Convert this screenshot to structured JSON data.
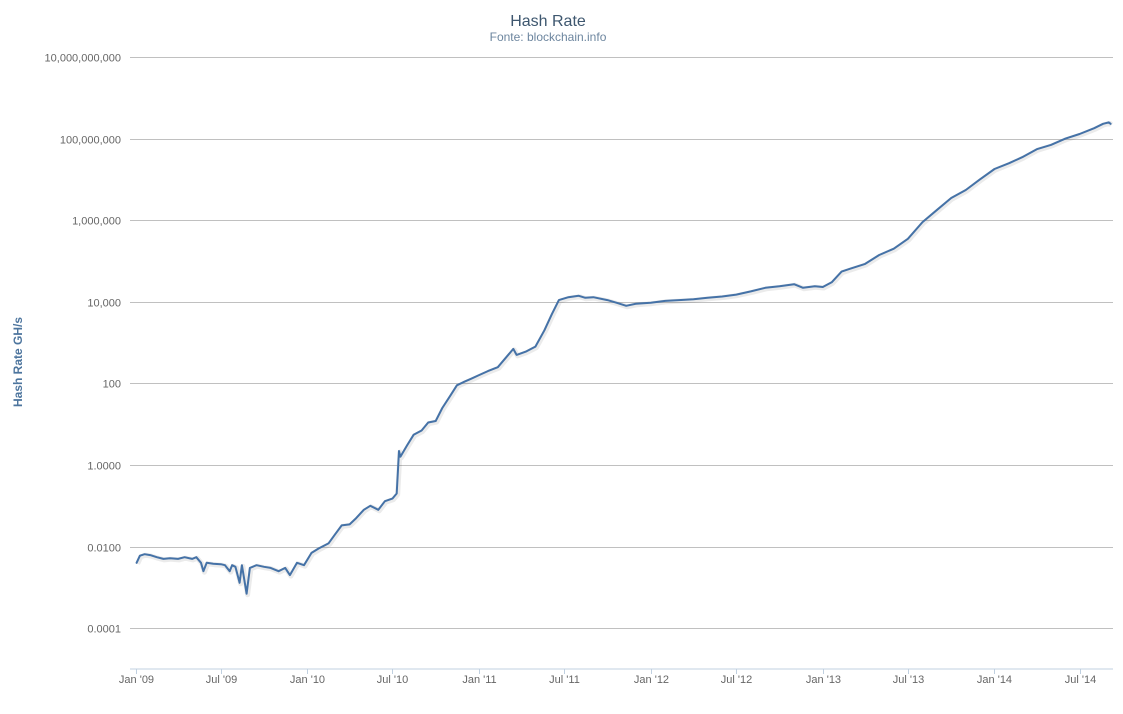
{
  "chart_data": {
    "type": "line",
    "title": "Hash Rate",
    "subtitle": "Fonte: blockchain.info",
    "xlabel": "",
    "ylabel": "Hash Rate GH/s",
    "yscale": "log",
    "ylim": [
      1e-05,
      10000000000
    ],
    "xlim": [
      "2008-12-20",
      "2014-09-10"
    ],
    "grid": true,
    "legend": "none",
    "color": "#4572a7",
    "y_ticks": [
      {
        "value": 0.0001,
        "label": "0.0001"
      },
      {
        "value": 0.01,
        "label": "0.0100"
      },
      {
        "value": 1,
        "label": "1.0000"
      },
      {
        "value": 100,
        "label": "100"
      },
      {
        "value": 10000,
        "label": "10,000"
      },
      {
        "value": 1000000,
        "label": "1,000,000"
      },
      {
        "value": 100000000,
        "label": "100,000,000"
      },
      {
        "value": 10000000000,
        "label": "10,000,000,000"
      }
    ],
    "x_ticks": [
      {
        "date": "2009-01-01",
        "label": "Jan '09"
      },
      {
        "date": "2009-07-01",
        "label": "Jul '09"
      },
      {
        "date": "2010-01-01",
        "label": "Jan '10"
      },
      {
        "date": "2010-07-01",
        "label": "Jul '10"
      },
      {
        "date": "2011-01-01",
        "label": "Jan '11"
      },
      {
        "date": "2011-07-01",
        "label": "Jul '11"
      },
      {
        "date": "2012-01-01",
        "label": "Jan '12"
      },
      {
        "date": "2012-07-01",
        "label": "Jul '12"
      },
      {
        "date": "2013-01-01",
        "label": "Jan '13"
      },
      {
        "date": "2013-07-01",
        "label": "Jul '13"
      },
      {
        "date": "2014-01-01",
        "label": "Jan '14"
      },
      {
        "date": "2014-07-01",
        "label": "Jul '14"
      }
    ],
    "series": [
      {
        "points": [
          [
            "2009-01-03",
            0.004
          ],
          [
            "2009-01-10",
            0.006
          ],
          [
            "2009-01-20",
            0.0065
          ],
          [
            "2009-02-01",
            0.0062
          ],
          [
            "2009-02-15",
            0.0055
          ],
          [
            "2009-03-01",
            0.005
          ],
          [
            "2009-03-15",
            0.0052
          ],
          [
            "2009-04-01",
            0.005
          ],
          [
            "2009-04-15",
            0.0055
          ],
          [
            "2009-05-01",
            0.005
          ],
          [
            "2009-05-10",
            0.0055
          ],
          [
            "2009-05-20",
            0.004
          ],
          [
            "2009-05-25",
            0.0025
          ],
          [
            "2009-06-01",
            0.004
          ],
          [
            "2009-06-15",
            0.0038
          ],
          [
            "2009-07-01",
            0.0037
          ],
          [
            "2009-07-10",
            0.0035
          ],
          [
            "2009-07-20",
            0.0025
          ],
          [
            "2009-07-25",
            0.0035
          ],
          [
            "2009-08-01",
            0.0032
          ],
          [
            "2009-08-10",
            0.0013
          ],
          [
            "2009-08-15",
            0.0035
          ],
          [
            "2009-08-25",
            0.0007
          ],
          [
            "2009-09-01",
            0.003
          ],
          [
            "2009-09-15",
            0.0035
          ],
          [
            "2009-10-01",
            0.0032
          ],
          [
            "2009-10-15",
            0.003
          ],
          [
            "2009-11-01",
            0.0025
          ],
          [
            "2009-11-15",
            0.003
          ],
          [
            "2009-11-25",
            0.002
          ],
          [
            "2009-12-10",
            0.004
          ],
          [
            "2009-12-25",
            0.0035
          ],
          [
            "2010-01-10",
            0.007
          ],
          [
            "2010-01-25",
            0.009
          ],
          [
            "2010-02-15",
            0.012
          ],
          [
            "2010-03-01",
            0.02
          ],
          [
            "2010-03-15",
            0.033
          ],
          [
            "2010-04-01",
            0.035
          ],
          [
            "2010-04-15",
            0.05
          ],
          [
            "2010-05-01",
            0.08
          ],
          [
            "2010-05-15",
            0.1
          ],
          [
            "2010-06-01",
            0.08
          ],
          [
            "2010-06-15",
            0.13
          ],
          [
            "2010-07-01",
            0.15
          ],
          [
            "2010-07-10",
            0.2
          ],
          [
            "2010-07-15",
            2.2
          ],
          [
            "2010-07-18",
            1.6
          ],
          [
            "2010-08-01",
            3
          ],
          [
            "2010-08-15",
            5.5
          ],
          [
            "2010-09-01",
            7
          ],
          [
            "2010-09-15",
            11
          ],
          [
            "2010-10-01",
            12
          ],
          [
            "2010-10-15",
            25
          ],
          [
            "2010-11-01",
            50
          ],
          [
            "2010-11-15",
            90
          ],
          [
            "2010-12-01",
            110
          ],
          [
            "2010-12-15",
            130
          ],
          [
            "2011-01-01",
            160
          ],
          [
            "2011-01-20",
            200
          ],
          [
            "2011-02-10",
            250
          ],
          [
            "2011-03-01",
            450
          ],
          [
            "2011-03-15",
            700
          ],
          [
            "2011-03-22",
            500
          ],
          [
            "2011-04-10",
            600
          ],
          [
            "2011-05-01",
            800
          ],
          [
            "2011-05-20",
            2000
          ],
          [
            "2011-06-05",
            5000
          ],
          [
            "2011-06-20",
            11000
          ],
          [
            "2011-07-10",
            13000
          ],
          [
            "2011-08-01",
            14000
          ],
          [
            "2011-08-15",
            12500
          ],
          [
            "2011-09-01",
            13000
          ],
          [
            "2011-10-01",
            11000
          ],
          [
            "2011-10-20",
            9500
          ],
          [
            "2011-11-10",
            8000
          ],
          [
            "2011-12-01",
            9000
          ],
          [
            "2012-01-01",
            9500
          ],
          [
            "2012-02-01",
            10500
          ],
          [
            "2012-03-01",
            11000
          ],
          [
            "2012-04-01",
            11500
          ],
          [
            "2012-05-01",
            12500
          ],
          [
            "2012-06-01",
            13500
          ],
          [
            "2012-07-01",
            15000
          ],
          [
            "2012-08-01",
            18000
          ],
          [
            "2012-09-01",
            22000
          ],
          [
            "2012-10-01",
            24000
          ],
          [
            "2012-11-01",
            27000
          ],
          [
            "2012-11-20",
            22000
          ],
          [
            "2012-12-15",
            24000
          ],
          [
            "2013-01-01",
            23000
          ],
          [
            "2013-01-20",
            30000
          ],
          [
            "2013-02-10",
            55000
          ],
          [
            "2013-03-01",
            65000
          ],
          [
            "2013-04-01",
            85000
          ],
          [
            "2013-05-01",
            140000
          ],
          [
            "2013-06-01",
            200000
          ],
          [
            "2013-07-01",
            350000
          ],
          [
            "2013-08-01",
            900000
          ],
          [
            "2013-09-01",
            1800000
          ],
          [
            "2013-10-01",
            3500000
          ],
          [
            "2013-11-01",
            5500000
          ],
          [
            "2013-12-01",
            10000000
          ],
          [
            "2014-01-01",
            18000000
          ],
          [
            "2014-02-01",
            25000000
          ],
          [
            "2014-03-01",
            35000000
          ],
          [
            "2014-04-01",
            55000000
          ],
          [
            "2014-05-01",
            70000000
          ],
          [
            "2014-06-01",
            100000000
          ],
          [
            "2014-07-01",
            130000000
          ],
          [
            "2014-08-01",
            180000000
          ],
          [
            "2014-08-20",
            230000000
          ],
          [
            "2014-09-01",
            250000000
          ],
          [
            "2014-09-05",
            230000000
          ]
        ]
      }
    ]
  }
}
